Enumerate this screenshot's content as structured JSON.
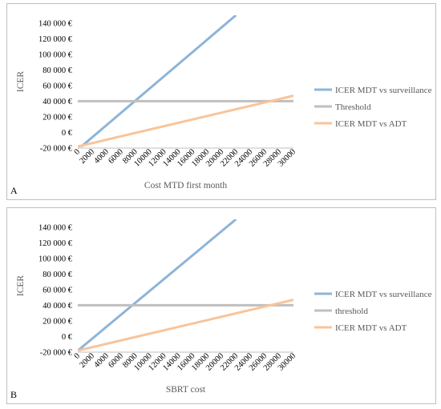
{
  "colors": {
    "surveillance": "#8eb4d8",
    "threshold": "#bfbfbf",
    "adt": "#f8c49a",
    "axis": "#bfbfbf",
    "text": "#595959"
  },
  "chart_data": [
    {
      "type": "line",
      "panel_label": "A",
      "xlabel": "Cost MTD first month",
      "ylabel": "ICER",
      "xlim": [
        0,
        30000
      ],
      "ylim": [
        -20000,
        150000
      ],
      "x_ticks": [
        0,
        2000,
        4000,
        6000,
        8000,
        10000,
        12000,
        14000,
        16000,
        18000,
        20000,
        22000,
        24000,
        26000,
        28000,
        30000
      ],
      "y_ticks": [
        -20000,
        0,
        20000,
        40000,
        60000,
        80000,
        100000,
        120000,
        140000
      ],
      "y_tick_labels": [
        "-20 000 €",
        "0 €",
        "20 000 €",
        "40 000 €",
        "60 000 €",
        "80 000 €",
        "100 000 €",
        "120 000 €",
        "140 000 €"
      ],
      "grid": false,
      "legend_position": "right",
      "series": [
        {
          "name": "ICER MDT vs surveillance",
          "x": [
            500,
            22000
          ],
          "y": [
            -18000,
            150000
          ]
        },
        {
          "name": "Threshold",
          "x": [
            0,
            30000
          ],
          "y": [
            40000,
            40000
          ]
        },
        {
          "name": "ICER MDT vs ADT",
          "x": [
            0,
            30000
          ],
          "y": [
            -18000,
            47000
          ]
        }
      ]
    },
    {
      "type": "line",
      "panel_label": "B",
      "xlabel": "SBRT cost",
      "ylabel": "ICER",
      "xlim": [
        0,
        30000
      ],
      "ylim": [
        -20000,
        150000
      ],
      "x_ticks": [
        0,
        2000,
        4000,
        6000,
        8000,
        10000,
        12000,
        14000,
        16000,
        18000,
        20000,
        22000,
        24000,
        26000,
        28000,
        30000
      ],
      "y_ticks": [
        -20000,
        0,
        20000,
        40000,
        60000,
        80000,
        100000,
        120000,
        140000
      ],
      "y_tick_labels": [
        "-20 000 €",
        "0 €",
        "20 000 €",
        "40 000 €",
        "60 000 €",
        "80 000 €",
        "100 000 €",
        "120 000 €",
        "140 000 €"
      ],
      "grid": false,
      "legend_position": "right",
      "series": [
        {
          "name": "ICER MDT vs surveillance",
          "x": [
            0,
            22000
          ],
          "y": [
            -18000,
            150000
          ]
        },
        {
          "name": "threshold",
          "x": [
            0,
            30000
          ],
          "y": [
            40000,
            40000
          ]
        },
        {
          "name": "ICER MDT vs ADT",
          "x": [
            0,
            30000
          ],
          "y": [
            -18000,
            47000
          ]
        }
      ]
    }
  ]
}
